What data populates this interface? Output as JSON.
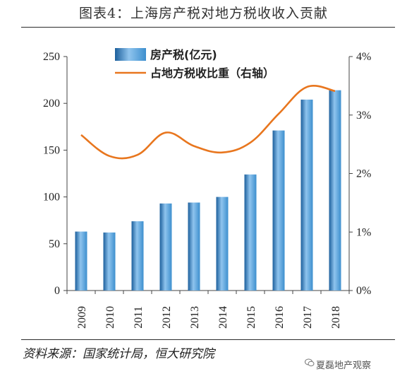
{
  "title": "图表4：上海房产税对地方税收收入贡献",
  "source": "资料来源：国家统计局，恒大研究院",
  "watermark": "夏磊地产观察",
  "colors": {
    "bar": "#3d8fce",
    "line": "#e8761e",
    "axis": "#444444"
  },
  "chart_data": {
    "type": "bar",
    "categories": [
      "2009",
      "2010",
      "2011",
      "2012",
      "2013",
      "2014",
      "2015",
      "2016",
      "2017",
      "2018"
    ],
    "series": [
      {
        "name": "房产税(亿元)",
        "type": "bar",
        "axis": "left",
        "values": [
          63,
          62,
          74,
          93,
          94,
          100,
          124,
          171,
          204,
          214
        ]
      },
      {
        "name": "占地方税收比重（右轴）",
        "type": "line",
        "axis": "right",
        "values": [
          2.66,
          2.3,
          2.32,
          2.7,
          2.47,
          2.36,
          2.53,
          3.02,
          3.48,
          3.41
        ]
      }
    ],
    "y_left": {
      "ylim": [
        0,
        250
      ],
      "ticks": [
        "0",
        "50",
        "100",
        "150",
        "200",
        "250"
      ]
    },
    "y_right": {
      "ylim": [
        0,
        4
      ],
      "ticks": [
        "0%",
        "1%",
        "2%",
        "3%",
        "4%"
      ]
    },
    "legend_position": "top-left",
    "grid": false
  }
}
